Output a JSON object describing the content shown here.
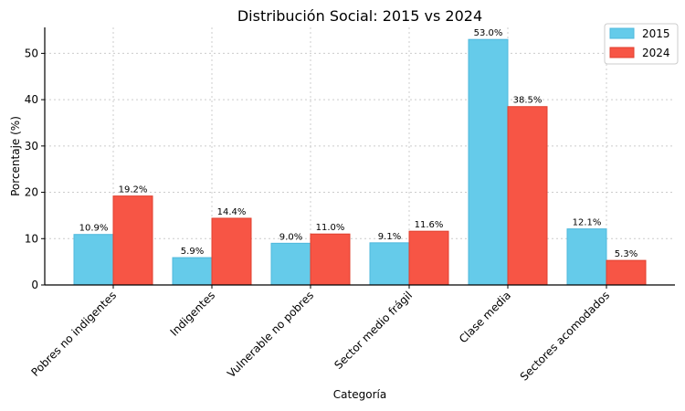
{
  "chart_data": {
    "type": "bar",
    "title": "Distribución Social: 2015 vs 2024",
    "xlabel": "Categoría",
    "ylabel": "Porcentaje (%)",
    "categories": [
      "Pobres no indigentes",
      "Indigentes",
      "Vulnerable no pobres",
      "Sector medio frágil",
      "Clase media",
      "Sectores acomodados"
    ],
    "series": [
      {
        "name": "2015",
        "values": [
          10.9,
          5.9,
          9.0,
          9.1,
          53.0,
          12.1
        ],
        "labels": [
          "10.9%",
          "5.9%",
          "9.0%",
          "9.1%",
          "53.0%",
          "12.1%"
        ],
        "color": "#65cbea",
        "edge": "#4fb8dc"
      },
      {
        "name": "2024",
        "values": [
          19.2,
          14.4,
          11.0,
          11.6,
          38.5,
          5.3
        ],
        "labels": [
          "19.2%",
          "14.4%",
          "11.0%",
          "11.6%",
          "38.5%",
          "5.3%"
        ],
        "color": "#f75545",
        "edge": "#e0402f"
      }
    ],
    "yticks": [
      0,
      10,
      20,
      30,
      40,
      50
    ],
    "ylim": [
      0,
      55.6
    ],
    "grid": true,
    "legend_position": "top-right"
  }
}
